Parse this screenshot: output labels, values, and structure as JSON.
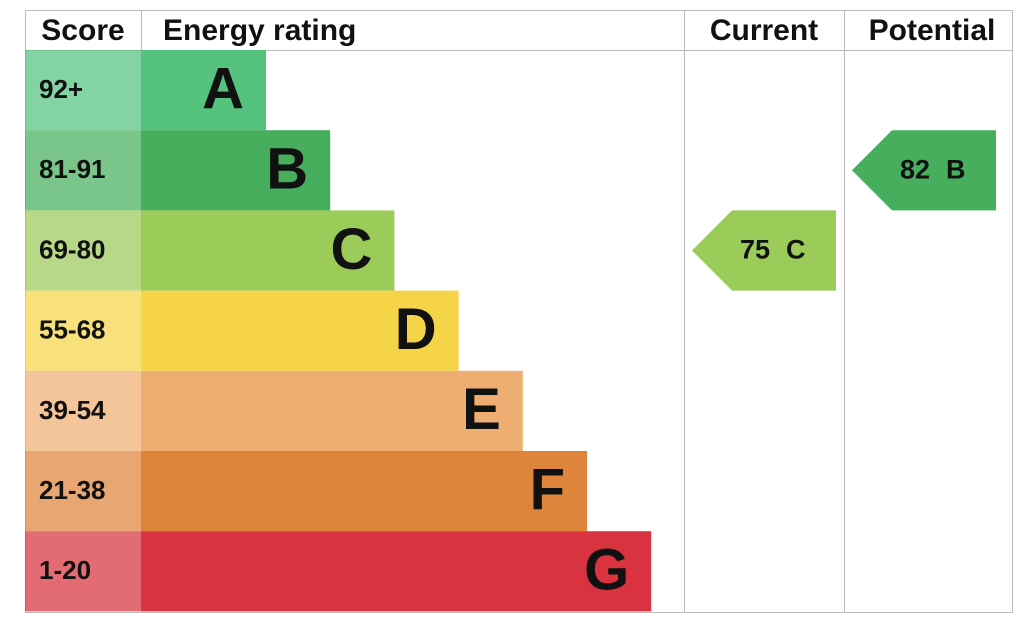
{
  "header": {
    "score": "Score",
    "rating": "Energy rating",
    "current": "Current",
    "potential": "Potential"
  },
  "bands": [
    {
      "score": "92+",
      "letter": "A",
      "color": "#55c27e"
    },
    {
      "score": "81-91",
      "letter": "B",
      "color": "#46ae5d"
    },
    {
      "score": "69-80",
      "letter": "C",
      "color": "#9bcb59"
    },
    {
      "score": "55-68",
      "letter": "D",
      "color": "#f5d547"
    },
    {
      "score": "39-54",
      "letter": "E",
      "color": "#efae71"
    },
    {
      "score": "21-38",
      "letter": "F",
      "color": "#df853b"
    },
    {
      "score": "1-20",
      "letter": "G",
      "color": "#d8333f"
    }
  ],
  "current": {
    "value": 75,
    "letter": "C"
  },
  "potential": {
    "value": 82,
    "letter": "B"
  }
}
